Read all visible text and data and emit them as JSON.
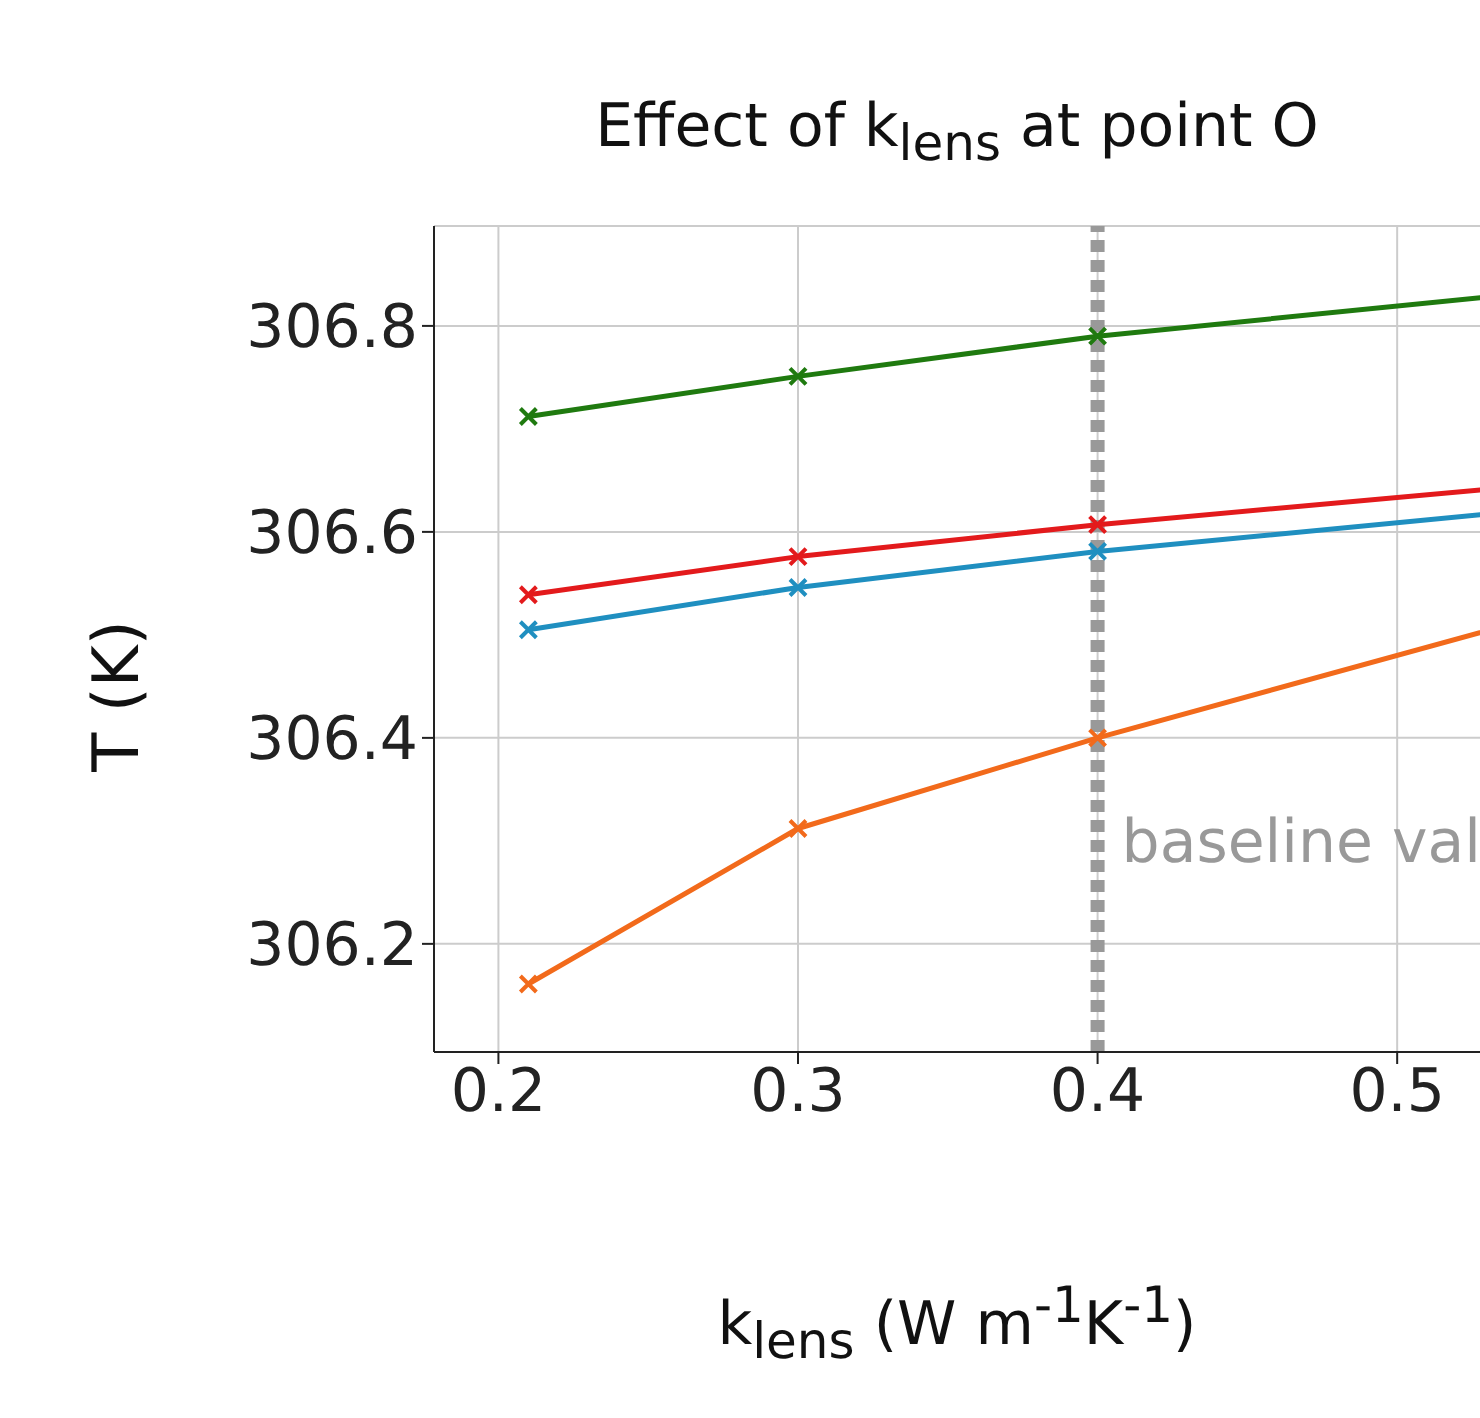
{
  "chart_data": {
    "type": "line",
    "title": "Effect of k$_{lens}$ at point O",
    "xlabel": "k$_{lens}$ (W m$^{-1}$K$^{-1}$)",
    "ylabel": "T (K)",
    "x": [
      0.21,
      0.3,
      0.4,
      0.54
    ],
    "series": [
      {
        "color": "#1f7a0f",
        "values": [
          306.712,
          306.751,
          306.79,
          306.831
        ]
      },
      {
        "color": "#e31a1c",
        "values": [
          306.539,
          306.576,
          306.607,
          306.644
        ]
      },
      {
        "color": "#1f8fc0",
        "values": [
          306.505,
          306.546,
          306.581,
          306.62
        ]
      },
      {
        "color": "#f26a1b",
        "values": [
          306.161,
          306.312,
          306.4,
          306.512
        ]
      }
    ],
    "xlim": [
      0.1785,
      0.541
    ],
    "xticks": [
      0.2,
      0.3,
      0.4,
      0.5
    ],
    "ylim": [
      306.095,
      306.897
    ],
    "yticks": [
      306.2,
      306.4,
      306.6,
      306.8
    ],
    "ref_lines": [
      {
        "axis": "x",
        "value": 0.4,
        "label": "baseline val",
        "color": "#999999",
        "line_style": "dotted"
      }
    ],
    "grid": true,
    "marker": "cross",
    "line_style": "solid"
  }
}
